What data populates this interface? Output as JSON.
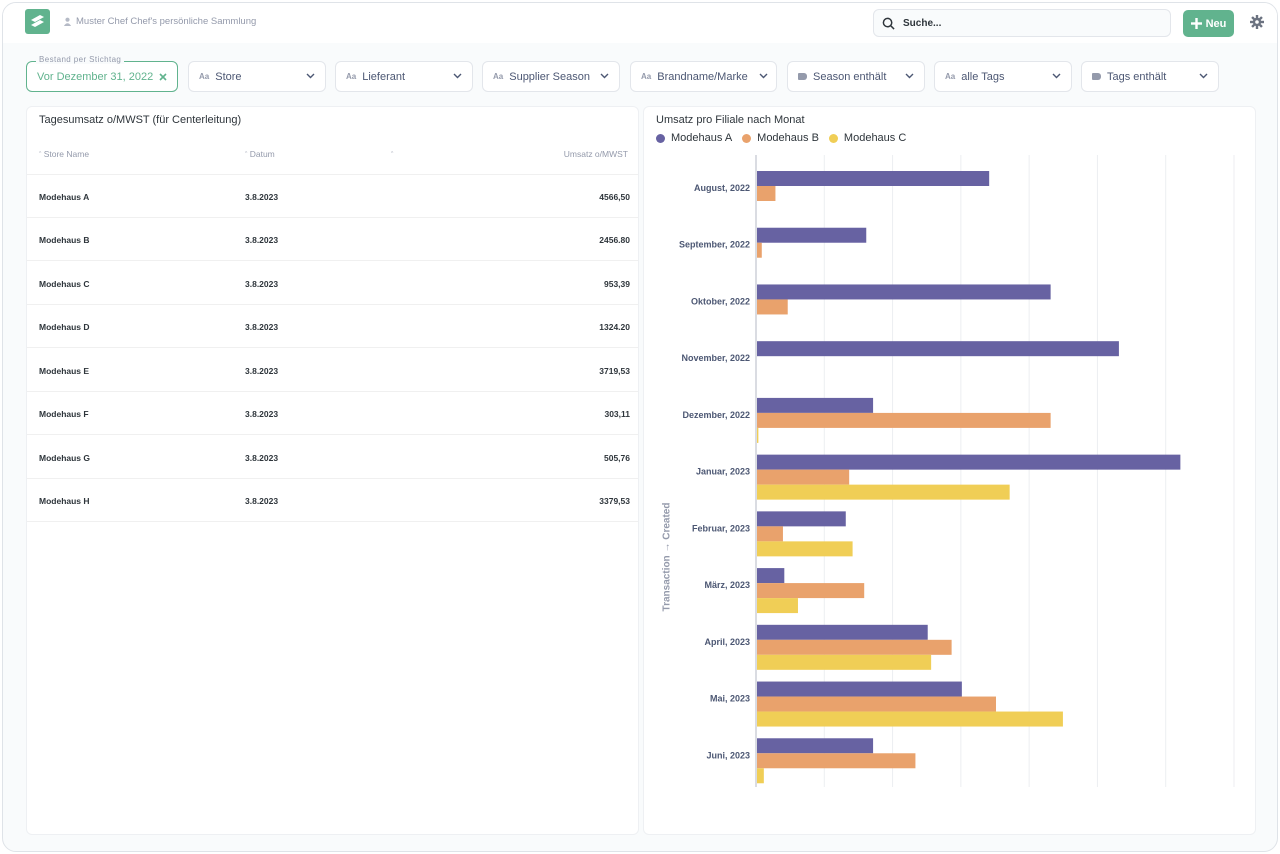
{
  "topbar": {
    "collection": "Muster Chef Chef's persönliche Sammlung",
    "search_placeholder": "Suche...",
    "new_label": "Neu"
  },
  "filters": [
    {
      "label": "Bestand per Stichtag",
      "value": "Vor Dezember 31, 2022"
    },
    {
      "value": "Store"
    },
    {
      "value": "Lieferant"
    },
    {
      "value": "Supplier Season"
    },
    {
      "value": "Brandname/Marke"
    },
    {
      "value": "Season enthält"
    },
    {
      "value": "alle Tags"
    },
    {
      "value": "Tags enthält"
    }
  ],
  "table": {
    "title": "Tagesumsatz o/MWST (für Centerleitung)",
    "columns": [
      "Store Name",
      "Datum",
      "Umsatz o/MWST"
    ],
    "rows": [
      [
        "Modehaus A",
        "3.8.2023",
        "4566,50"
      ],
      [
        "Modehaus B",
        "3.8.2023",
        "2456.80"
      ],
      [
        "Modehaus C",
        "3.8.2023",
        "953,39"
      ],
      [
        "Modehaus D",
        "3.8.2023",
        "1324.20"
      ],
      [
        "Modehaus E",
        "3.8.2023",
        "3719,53"
      ],
      [
        "Modehaus F",
        "3.8.2023",
        "303,11"
      ],
      [
        "Modehaus G",
        "3.8.2023",
        "505,76"
      ],
      [
        "Modehaus H",
        "3.8.2023",
        "3379,53"
      ]
    ]
  },
  "chart_data": {
    "type": "bar",
    "orientation": "horizontal",
    "title": "Umsatz pro Filiale nach Monat",
    "ylabel": "Transaction → Created",
    "categories": [
      "August, 2022",
      "September, 2022",
      "Oktober, 2022",
      "November, 2022",
      "Dezember, 2022",
      "Januar, 2023",
      "Februar, 2023",
      "März, 2023",
      "April, 2023",
      "Mai, 2023",
      "Juni, 2023"
    ],
    "series": [
      {
        "name": "Modehaus A",
        "color": "#6762a2",
        "values": [
          34,
          16,
          43,
          53,
          17,
          62,
          13,
          4,
          25,
          30,
          17
        ]
      },
      {
        "name": "Modehaus B",
        "color": "#e9a26c",
        "values": [
          2.7,
          0.7,
          4.5,
          0,
          43,
          13.5,
          3.8,
          15.7,
          28.5,
          35,
          23.2
        ]
      },
      {
        "name": "Modehaus C",
        "color": "#f0ce56",
        "values": [
          0,
          0,
          0,
          0,
          0.2,
          37,
          14,
          6,
          25.5,
          44.8,
          1
        ]
      }
    ],
    "xlim": [
      0,
      70
    ],
    "grid": true,
    "legend": "top-left"
  },
  "colors": {
    "brand": "#61b38e"
  }
}
